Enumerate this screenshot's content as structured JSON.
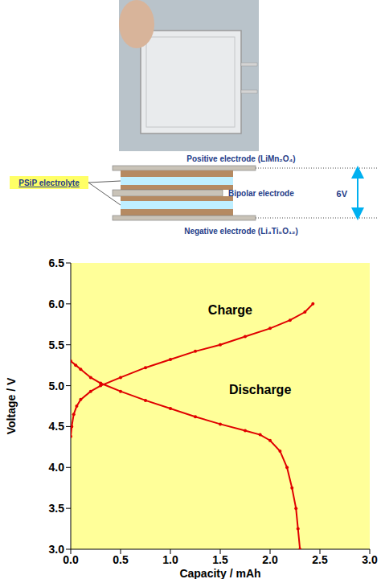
{
  "diagram": {
    "electrodes": {
      "positive": "Positive electrode (LiMn₂O₄)",
      "bipolar": "Bipolar electrode",
      "negative": "Negative electrode (Li₄Ti₅O₁₂)"
    },
    "electrolyte": "PSiP electrolyte",
    "voltage": "6V"
  },
  "chart_data": {
    "type": "line",
    "x_label": "Capacity / mAh",
    "y_label": "Voltage / V",
    "xlim": [
      0,
      3
    ],
    "ylim": [
      3,
      6.5
    ],
    "xticks": [
      {
        "value": 0,
        "label": "0.0"
      },
      {
        "value": 0.5,
        "label": "0.5"
      },
      {
        "value": 1,
        "label": "1.0"
      },
      {
        "value": 1.5,
        "label": "1.5"
      },
      {
        "value": 2,
        "label": "2.0"
      },
      {
        "value": 2.5,
        "label": "2.5"
      },
      {
        "value": 3,
        "label": "3.0"
      }
    ],
    "yticks": [
      {
        "value": 3,
        "label": "3.0"
      },
      {
        "value": 3.5,
        "label": "3.5"
      },
      {
        "value": 4,
        "label": "4.0"
      },
      {
        "value": 4.5,
        "label": "4.5"
      },
      {
        "value": 5,
        "label": "5.0"
      },
      {
        "value": 5.5,
        "label": "5.5"
      },
      {
        "value": 6,
        "label": "6.0"
      },
      {
        "value": 6.5,
        "label": "6.5"
      }
    ],
    "grid": false,
    "series": [
      {
        "color": "#e00000",
        "marker": "circle",
        "x": [
          0,
          0.01,
          0.03,
          0.06,
          0.1,
          0.2,
          0.3,
          0.5,
          0.75,
          1.0,
          1.25,
          1.5,
          1.75,
          2.0,
          2.2,
          2.35,
          2.43
        ],
        "values": [
          4.38,
          4.5,
          4.65,
          4.75,
          4.83,
          4.93,
          5.0,
          5.1,
          5.22,
          5.32,
          5.42,
          5.5,
          5.6,
          5.7,
          5.8,
          5.9,
          6.0
        ]
      },
      {
        "color": "#e00000",
        "marker": "circle",
        "x": [
          0,
          0.05,
          0.1,
          0.2,
          0.3,
          0.5,
          0.75,
          1.0,
          1.25,
          1.5,
          1.75,
          1.9,
          2.0,
          2.1,
          2.17,
          2.22,
          2.26,
          2.28,
          2.3
        ],
        "values": [
          5.3,
          5.25,
          5.2,
          5.1,
          5.03,
          4.93,
          4.82,
          4.72,
          4.62,
          4.53,
          4.45,
          4.4,
          4.33,
          4.2,
          4.0,
          3.75,
          3.5,
          3.25,
          3.0
        ]
      }
    ],
    "annotations": [
      {
        "text": "Charge",
        "x": 1.6,
        "y": 5.93
      },
      {
        "text": "Discharge",
        "x": 1.9,
        "y": 4.95
      }
    ]
  }
}
